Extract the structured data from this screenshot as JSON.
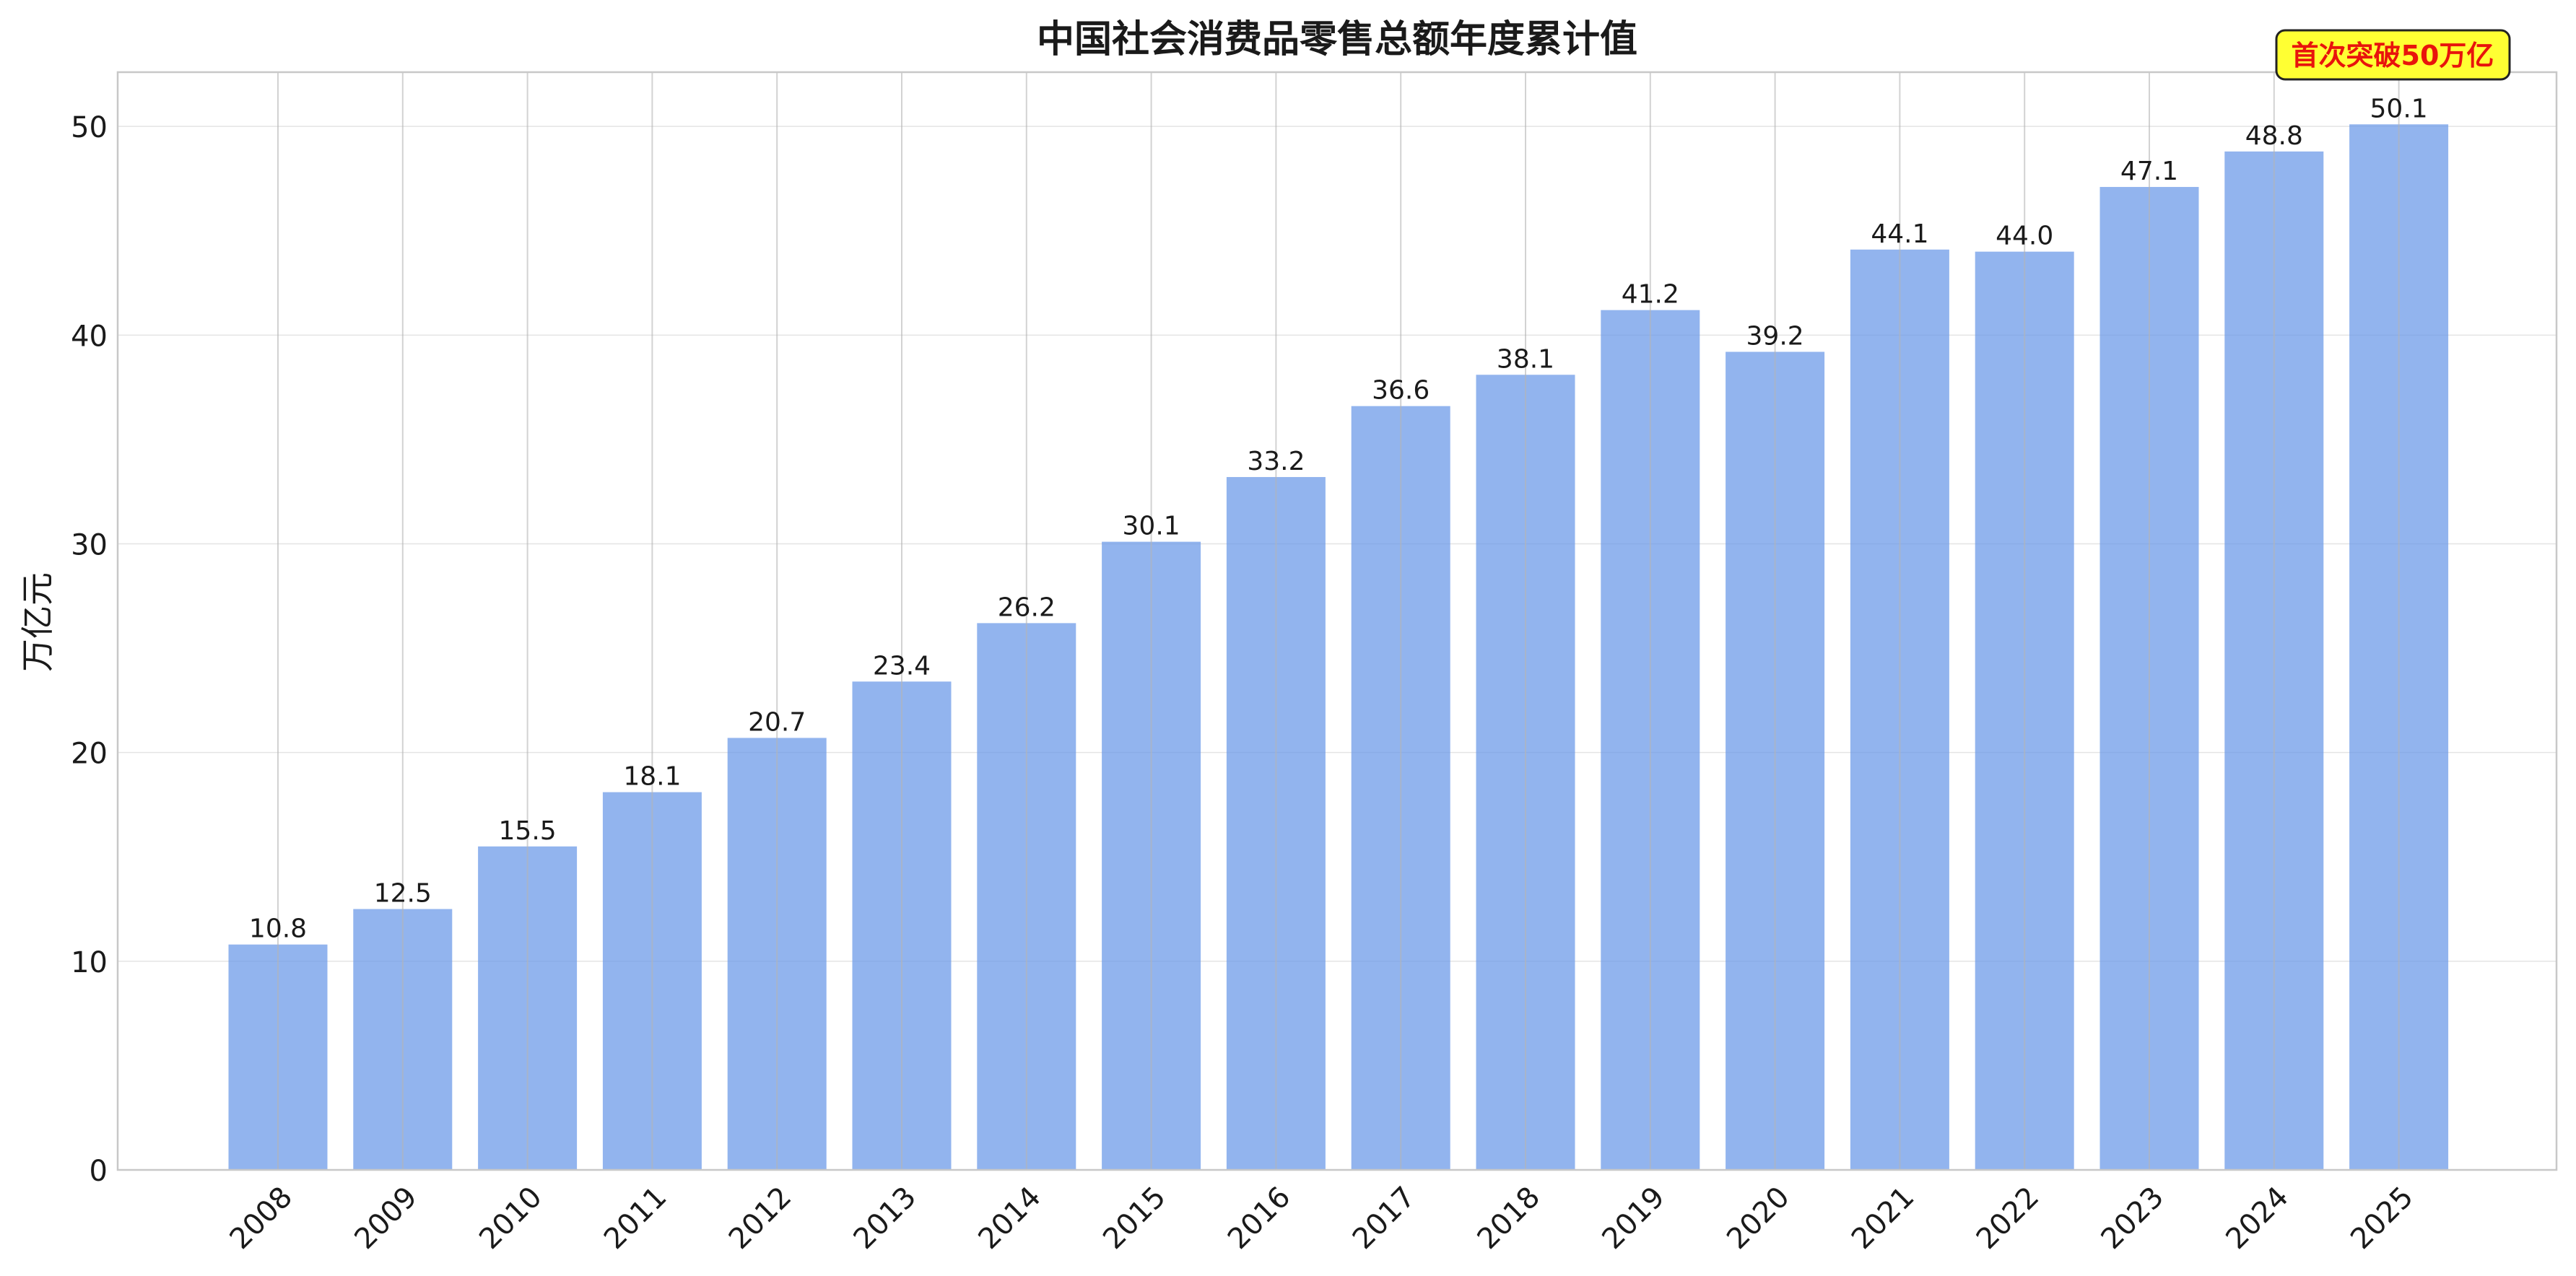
{
  "chart_data": {
    "type": "bar",
    "title": "中国社会消费品零售总额年度累计值",
    "xlabel": "",
    "ylabel": "万亿元",
    "categories": [
      "2008",
      "2009",
      "2010",
      "2011",
      "2012",
      "2013",
      "2014",
      "2015",
      "2016",
      "2017",
      "2018",
      "2019",
      "2020",
      "2021",
      "2022",
      "2023",
      "2024",
      "2025"
    ],
    "values": [
      10.8,
      12.5,
      15.5,
      18.1,
      20.7,
      23.4,
      26.2,
      30.1,
      33.2,
      36.6,
      38.1,
      41.2,
      39.2,
      44.1,
      44.0,
      47.1,
      48.8,
      50.1
    ],
    "value_labels": [
      "10.8",
      "12.5",
      "15.5",
      "18.1",
      "20.7",
      "23.4",
      "26.2",
      "30.1",
      "33.2",
      "36.6",
      "38.1",
      "41.2",
      "39.2",
      "44.1",
      "44.0",
      "47.1",
      "48.8",
      "50.1"
    ],
    "ylim": [
      0,
      52.6
    ],
    "yticks": [
      0,
      10,
      20,
      30,
      40,
      50
    ],
    "ytick_labels": [
      "0",
      "10",
      "20",
      "30",
      "40",
      "50"
    ],
    "grid": true,
    "annotation": {
      "text": "首次突破50万亿",
      "target_category": "2025"
    },
    "colors": {
      "bar": "#6d9be8",
      "grid": "#d9d9d9",
      "axis": "#c8c8c8",
      "text": "#1a1a1a",
      "annotation_bg": "#ffff33",
      "annotation_text": "#e8140c",
      "annotation_border": "#222222"
    }
  }
}
